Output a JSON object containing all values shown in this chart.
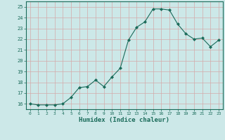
{
  "x": [
    0,
    1,
    2,
    3,
    4,
    5,
    6,
    7,
    8,
    9,
    10,
    11,
    12,
    13,
    14,
    15,
    16,
    17,
    18,
    19,
    20,
    21,
    22,
    23
  ],
  "y": [
    16.0,
    15.9,
    15.9,
    15.9,
    16.0,
    16.6,
    17.5,
    17.6,
    18.2,
    17.6,
    18.5,
    19.3,
    21.9,
    23.1,
    23.6,
    24.8,
    24.8,
    24.7,
    23.4,
    22.5,
    22.0,
    22.1,
    21.3,
    21.9
  ],
  "line_color": "#1a6b5a",
  "marker": "D",
  "marker_size": 2,
  "bg_color": "#cce8e8",
  "grid_color": "#d4aaaa",
  "title": "",
  "xlabel": "Humidex (Indice chaleur)",
  "xlim": [
    -0.5,
    23.5
  ],
  "ylim": [
    15.5,
    25.5
  ],
  "yticks": [
    16,
    17,
    18,
    19,
    20,
    21,
    22,
    23,
    24,
    25
  ],
  "xticks": [
    0,
    1,
    2,
    3,
    4,
    5,
    6,
    7,
    8,
    9,
    10,
    11,
    12,
    13,
    14,
    15,
    16,
    17,
    18,
    19,
    20,
    21,
    22,
    23
  ],
  "tick_color": "#1a6b5a",
  "label_color": "#1a6b5a"
}
